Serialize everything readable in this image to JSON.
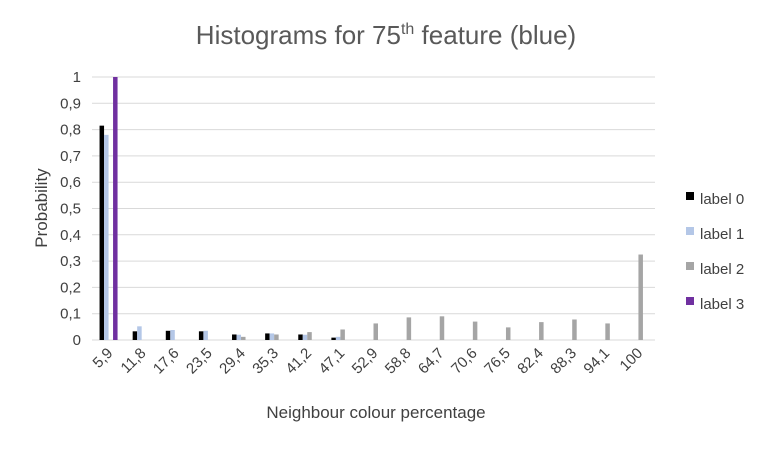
{
  "chart_data": {
    "type": "bar",
    "title": "Histograms for 75",
    "title_superscript": "th",
    "title_suffix": " feature (blue)",
    "xlabel": "Neighbour colour percentage",
    "ylabel": "Probability",
    "ylim": [
      0,
      1
    ],
    "yticks": [
      "0",
      "0,1",
      "0,2",
      "0,3",
      "0,4",
      "0,5",
      "0,6",
      "0,7",
      "0,8",
      "0,9",
      "1"
    ],
    "grid": true,
    "legend_position": "right",
    "categories": [
      "5,9",
      "11,8",
      "17,6",
      "23,5",
      "29,4",
      "35,3",
      "41,2",
      "47,1",
      "52,9",
      "58,8",
      "64,7",
      "70,6",
      "76,5",
      "82,4",
      "88,3",
      "94,1",
      "100"
    ],
    "series": [
      {
        "name": "label 0",
        "color": "#000000",
        "values": [
          0.815,
          0.033,
          0.035,
          0.033,
          0.021,
          0.025,
          0.021,
          0.009,
          0,
          0,
          0,
          0,
          0,
          0,
          0,
          0,
          0
        ]
      },
      {
        "name": "label 1",
        "color": "#b4c7e7",
        "values": [
          0.78,
          0.052,
          0.038,
          0.035,
          0.02,
          0.025,
          0.02,
          0.012,
          0,
          0,
          0,
          0,
          0,
          0,
          0,
          0,
          0
        ]
      },
      {
        "name": "label 2",
        "color": "#a5a5a5",
        "values": [
          0,
          0,
          0,
          0,
          0.012,
          0.021,
          0.03,
          0.04,
          0.063,
          0.086,
          0.09,
          0.07,
          0.048,
          0.068,
          0.078,
          0.063,
          0.325
        ]
      },
      {
        "name": "label 3",
        "color": "#7030a0",
        "values": [
          1.0,
          0,
          0,
          0,
          0,
          0,
          0,
          0,
          0,
          0,
          0,
          0,
          0,
          0,
          0,
          0,
          0
        ]
      }
    ]
  }
}
